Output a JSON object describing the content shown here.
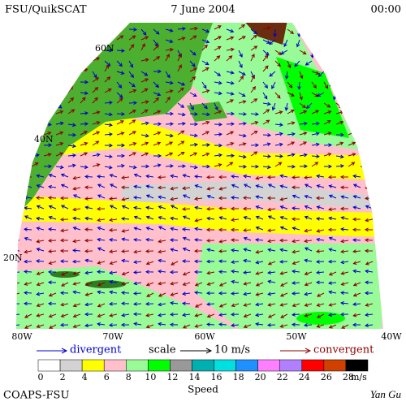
{
  "header": {
    "left": "FSU/QuikSCAT",
    "center": "7 June 2004",
    "right": "00:00"
  },
  "map": {
    "lat_labels": [
      "60N",
      "40N",
      "20N"
    ],
    "lon_labels": [
      "80W",
      "70W",
      "60W",
      "50W",
      "40W"
    ]
  },
  "legend": {
    "divergent": "divergent",
    "scale": "scale",
    "scale_value": "10 m/s",
    "convergent": "convergent"
  },
  "colorbar": {
    "title": "Speed",
    "unit": "m/s",
    "labels": [
      0,
      2,
      4,
      6,
      8,
      10,
      12,
      14,
      16,
      18,
      20,
      22,
      24,
      26,
      28
    ],
    "colors": [
      "#ffffff",
      "#d3d3d3",
      "#ffff00",
      "#ffc0cb",
      "#98fb98",
      "#00ff00",
      "#999999",
      "#00b0b0",
      "#00e0e0",
      "#1e90ff",
      "#ff80ff",
      "#b080ff",
      "#ff0000",
      "#d04000",
      "#000000"
    ]
  },
  "footer": {
    "left": "COAPS-FSU",
    "right": "Yan Gu"
  }
}
